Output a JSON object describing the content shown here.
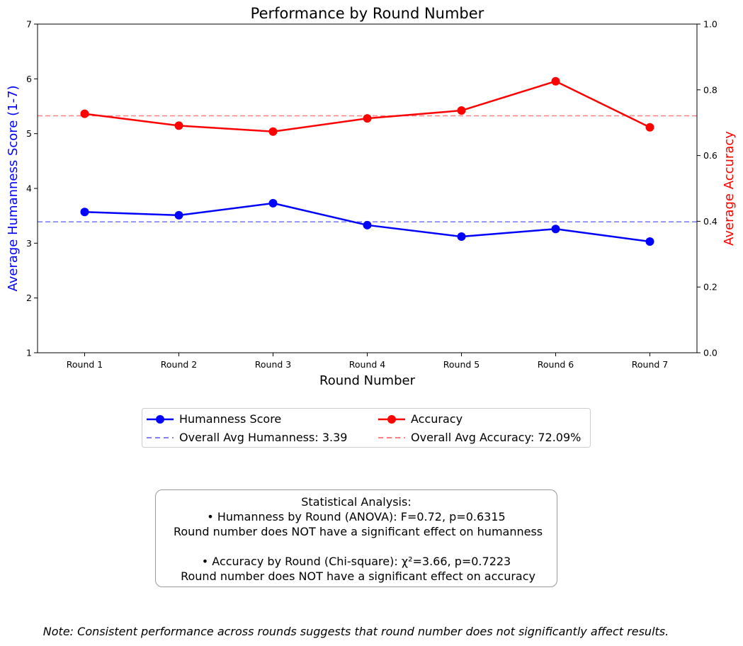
{
  "chart_data": {
    "type": "line",
    "title": "Performance by Round Number",
    "xlabel": "Round Number",
    "ylabel_left": "Average Humanness Score (1-7)",
    "ylabel_right": "Average Accuracy",
    "categories": [
      "Round 1",
      "Round 2",
      "Round 3",
      "Round 4",
      "Round 5",
      "Round 6",
      "Round 7"
    ],
    "ylim_left": [
      1,
      7
    ],
    "yticks_left": [
      1,
      2,
      3,
      4,
      5,
      6,
      7
    ],
    "ylim_right": [
      0,
      1.0
    ],
    "yticks_right": [
      "0.0",
      "0.2",
      "0.4",
      "0.6",
      "0.8",
      "1.0"
    ],
    "grid": false,
    "legend_placement": "below",
    "series": [
      {
        "name": "Humanness Score",
        "axis": "left",
        "color": "#0000ff",
        "values": [
          3.57,
          3.51,
          3.73,
          3.33,
          3.12,
          3.26,
          3.03
        ]
      },
      {
        "name": "Accuracy",
        "axis": "right",
        "color": "#ff0000",
        "values": [
          0.727,
          0.691,
          0.673,
          0.713,
          0.737,
          0.826,
          0.686
        ]
      }
    ],
    "reference_lines": [
      {
        "name": "Overall Avg Humanness: 3.39",
        "axis": "left",
        "value": 3.39,
        "color": "#8080ff",
        "style": "dashed"
      },
      {
        "name": "Overall Avg Accuracy: 72.09%",
        "axis": "right",
        "value": 0.7209,
        "color": "#ff8080",
        "style": "dashed"
      }
    ]
  },
  "stats": {
    "heading": "Statistical Analysis:",
    "humanness_test": "• Humanness by Round (ANOVA): F=0.72, p=0.6315",
    "humanness_result": " Round number does NOT have a significant effect on humanness",
    "accuracy_test": "• Accuracy by Round (Chi-square): χ²=3.66, p=0.7223",
    "accuracy_result": " Round number does NOT have a significant effect on accuracy"
  },
  "note": "Note: Consistent performance across rounds suggests that round number does not significantly affect results."
}
